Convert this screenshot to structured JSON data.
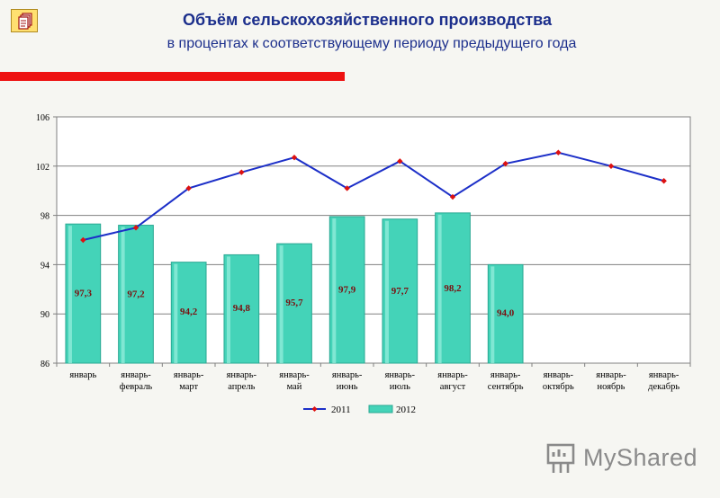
{
  "header": {
    "title": "Объём сельскохозяйственного производства",
    "subtitle": "в процентах к соответствующему периоду предыдущего года",
    "nav_icon": "pages-icon"
  },
  "logo": {
    "text": "MyShared",
    "icon": "presentation-board-icon"
  },
  "colors": {
    "line_2011": "#1c2fc8",
    "marker_2011": "#dd1111",
    "bar_2012": "#44d3b8",
    "data_label": "#7a1010",
    "title": "#1c2f8c",
    "accent_rule": "#ee1111"
  },
  "chart_data": {
    "type": "bar",
    "categories": [
      [
        "январь"
      ],
      [
        "январь-",
        "февраль"
      ],
      [
        "январь-",
        "март"
      ],
      [
        "январь-",
        "апрель"
      ],
      [
        "январь-",
        "май"
      ],
      [
        "январь-",
        "июнь"
      ],
      [
        "январь-",
        "июль"
      ],
      [
        "январь-",
        "август"
      ],
      [
        "январь-",
        "сентябрь"
      ],
      [
        "январь-",
        "октябрь"
      ],
      [
        "январь-",
        "ноябрь"
      ],
      [
        "январь-",
        "декабрь"
      ]
    ],
    "series": [
      {
        "name": "2011",
        "type": "line",
        "values": [
          96.0,
          97.0,
          100.2,
          101.5,
          102.7,
          100.2,
          102.4,
          99.5,
          102.2,
          103.1,
          102.0,
          100.8
        ]
      },
      {
        "name": "2012",
        "type": "bar",
        "values": [
          97.3,
          97.2,
          94.2,
          94.8,
          95.7,
          97.9,
          97.7,
          98.2,
          94.0,
          null,
          null,
          null
        ],
        "labels": [
          "97,3",
          "97,2",
          "94,2",
          "94,8",
          "95,7",
          "97,9",
          "97,7",
          "98,2",
          "94,0",
          null,
          null,
          null
        ]
      }
    ],
    "ylim": [
      86,
      106
    ],
    "yticks": [
      86,
      90,
      94,
      98,
      102,
      106
    ],
    "grid": true,
    "legend_position": "bottom"
  }
}
